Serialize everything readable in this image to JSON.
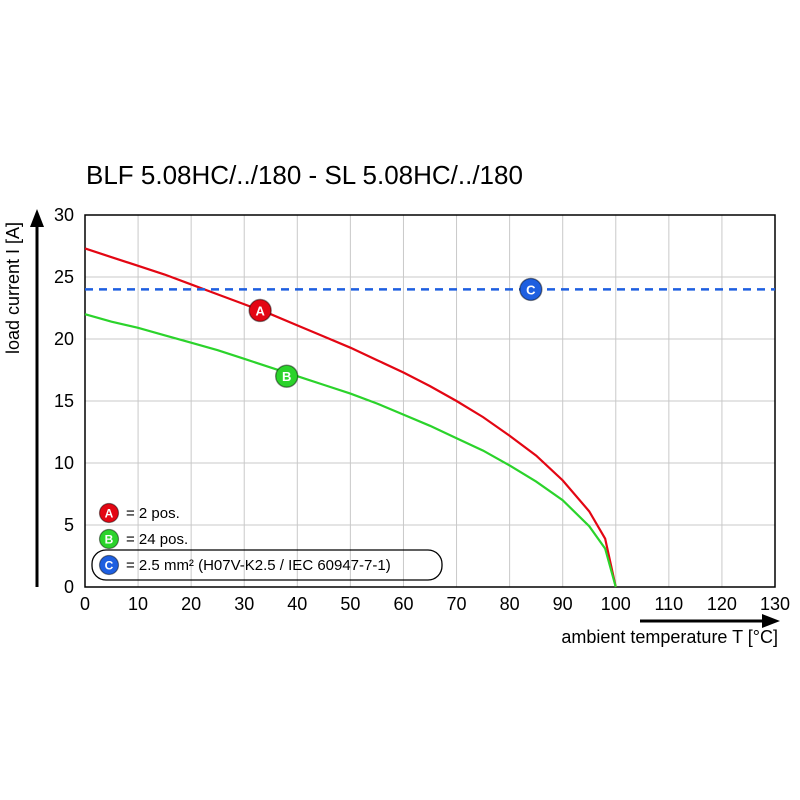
{
  "chart_data": {
    "type": "line",
    "title": "BLF 5.08HC/../180 - SL 5.08HC/../180",
    "xlabel": "ambient temperature T [°C]",
    "ylabel": "load current I [A]",
    "xlim": [
      0,
      130
    ],
    "ylim": [
      0,
      30
    ],
    "x_ticks": [
      0,
      10,
      20,
      30,
      40,
      50,
      60,
      70,
      80,
      90,
      100,
      110,
      120,
      130
    ],
    "y_ticks": [
      0,
      5,
      10,
      15,
      20,
      25,
      30
    ],
    "grid": true,
    "legend_position": "bottom-left-inside",
    "series": [
      {
        "name": "A",
        "label": "= 2 pos.",
        "color": "#e30613",
        "style": "solid",
        "x": [
          0,
          5,
          10,
          15,
          20,
          25,
          30,
          35,
          40,
          45,
          50,
          55,
          60,
          65,
          70,
          75,
          80,
          85,
          90,
          95,
          98,
          100
        ],
        "y": [
          27.3,
          26.6,
          25.9,
          25.2,
          24.4,
          23.6,
          22.8,
          22.0,
          21.1,
          20.2,
          19.3,
          18.3,
          17.3,
          16.2,
          15.0,
          13.7,
          12.2,
          10.6,
          8.6,
          6.1,
          3.9,
          0
        ],
        "marker": {
          "x": 33,
          "y": 22.3,
          "letter": "A"
        }
      },
      {
        "name": "B",
        "label": "= 24 pos.",
        "color": "#2bd32b",
        "style": "solid",
        "x": [
          0,
          5,
          10,
          15,
          20,
          25,
          30,
          35,
          40,
          45,
          50,
          55,
          60,
          65,
          70,
          75,
          80,
          85,
          90,
          95,
          98,
          100
        ],
        "y": [
          22.0,
          21.4,
          20.9,
          20.3,
          19.7,
          19.1,
          18.4,
          17.7,
          17.0,
          16.3,
          15.6,
          14.8,
          13.9,
          13.0,
          12.0,
          11.0,
          9.8,
          8.5,
          7.0,
          4.9,
          3.1,
          0
        ],
        "marker": {
          "x": 38,
          "y": 17.0,
          "letter": "B"
        }
      },
      {
        "name": "C",
        "label": "= 2.5 mm² (H07V-K2.5 / IEC 60947-7-1)",
        "color": "#1e5fe0",
        "style": "dashed",
        "x": [
          0,
          130
        ],
        "y": [
          24,
          24
        ],
        "marker": {
          "x": 84,
          "y": 24,
          "letter": "C"
        }
      }
    ],
    "legend": {
      "items": [
        {
          "letter": "A",
          "color": "#e30613",
          "text": "= 2 pos.",
          "boxed": false
        },
        {
          "letter": "B",
          "color": "#2bd32b",
          "text": "= 24 pos.",
          "boxed": false
        },
        {
          "letter": "C",
          "color": "#1e5fe0",
          "text": "= 2.5 mm² (H07V-K2.5 / IEC 60947-7-1)",
          "boxed": true
        }
      ]
    }
  }
}
